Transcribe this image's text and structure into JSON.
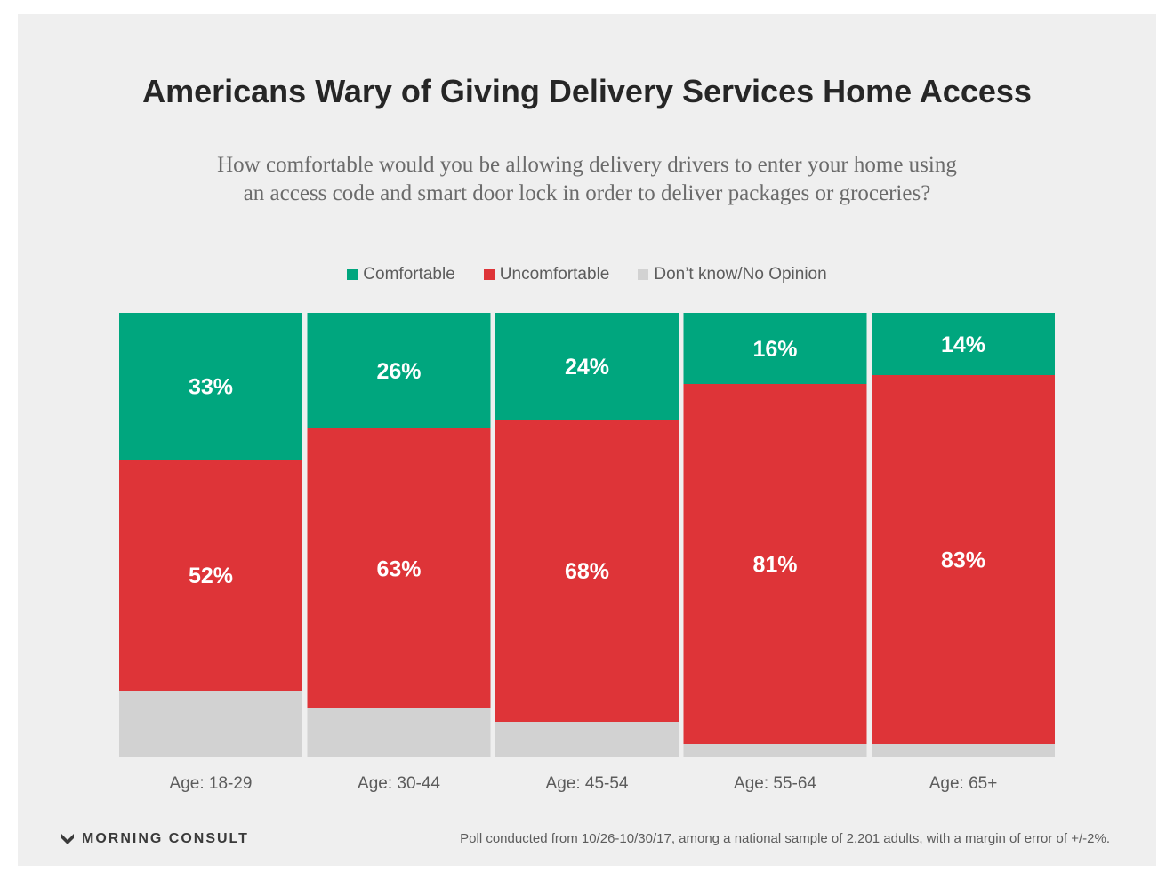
{
  "colors": {
    "comfortable": "#00a67e",
    "uncomfortable": "#de3438",
    "dont_know": "#d2d2d2",
    "label_text": "#ffffff",
    "axis_text": "#5c5c5c"
  },
  "brand": {
    "name": "MORNING CONSULT",
    "icon": "morning-consult-logo-icon"
  },
  "footnote": "Poll conducted from 10/26-10/30/17, among a national sample of 2,201 adults, with a margin of error of +/-2%.",
  "chart_data": {
    "type": "bar",
    "stacked": true,
    "title": "Americans Wary of Giving Delivery Services Home Access",
    "subtitle_lines": [
      "How comfortable would you be allowing delivery drivers to enter your home using",
      "an access code and smart door lock in order to deliver packages or groceries?"
    ],
    "legend_position": "top-center",
    "categories": [
      "Age: 18-29",
      "Age: 30-44",
      "Age: 45-54",
      "Age: 55-64",
      "Age: 65+"
    ],
    "series": [
      {
        "name": "Comfortable",
        "values": [
          33,
          26,
          24,
          16,
          14
        ],
        "labels": [
          "33%",
          "26%",
          "24%",
          "16%",
          "14%"
        ]
      },
      {
        "name": "Uncomfortable",
        "values": [
          52,
          63,
          68,
          81,
          83
        ],
        "labels": [
          "52%",
          "63%",
          "68%",
          "81%",
          "83%"
        ]
      },
      {
        "name": "Don’t know/No Opinion",
        "values": [
          15,
          11,
          8,
          3,
          3
        ]
      }
    ],
    "ylim": [
      0,
      100
    ],
    "grid": false
  }
}
